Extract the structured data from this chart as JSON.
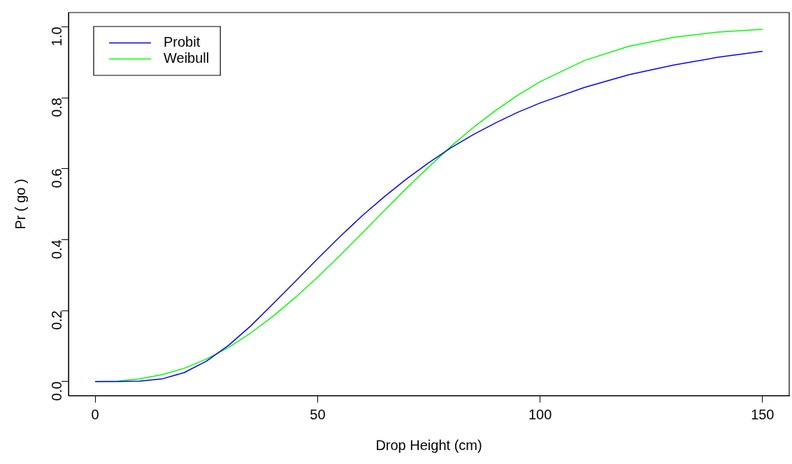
{
  "chart_data": {
    "type": "line",
    "xlabel": "Drop Height (cm)",
    "ylabel": "Pr ( go )",
    "x": [
      0,
      5,
      10,
      15,
      20,
      25,
      30,
      35,
      40,
      45,
      50,
      55,
      60,
      65,
      70,
      75,
      80,
      85,
      90,
      95,
      100,
      110,
      120,
      130,
      140,
      150
    ],
    "series": [
      {
        "name": "Probit",
        "color": "#0000ff",
        "values": [
          0,
          0,
          0.001,
          0.007,
          0.025,
          0.057,
          0.102,
          0.157,
          0.219,
          0.282,
          0.346,
          0.408,
          0.467,
          0.521,
          0.571,
          0.617,
          0.659,
          0.696,
          0.729,
          0.759,
          0.785,
          0.829,
          0.865,
          0.892,
          0.914,
          0.931
        ]
      },
      {
        "name": "Weibull",
        "color": "#00ff00",
        "values": [
          0,
          0.001,
          0.007,
          0.019,
          0.037,
          0.063,
          0.096,
          0.137,
          0.184,
          0.237,
          0.294,
          0.355,
          0.418,
          0.482,
          0.545,
          0.605,
          0.663,
          0.716,
          0.764,
          0.807,
          0.845,
          0.905,
          0.945,
          0.97,
          0.985,
          0.993
        ]
      }
    ],
    "xlim": [
      -6,
      156
    ],
    "xticks": [
      0,
      50,
      100,
      150
    ],
    "ylim": [
      -0.04,
      1.04
    ],
    "yticks": [
      {
        "value": 0,
        "label": "0.0"
      },
      {
        "value": 0.2,
        "label": "0.2"
      },
      {
        "value": 0.4,
        "label": "0.4"
      },
      {
        "value": 0.6,
        "label": "0.6"
      },
      {
        "value": 0.8,
        "label": "0.8"
      },
      {
        "value": 1,
        "label": "1.0"
      }
    ],
    "grid": false,
    "legend": "top left",
    "marker": "none",
    "line_style": "solid"
  }
}
